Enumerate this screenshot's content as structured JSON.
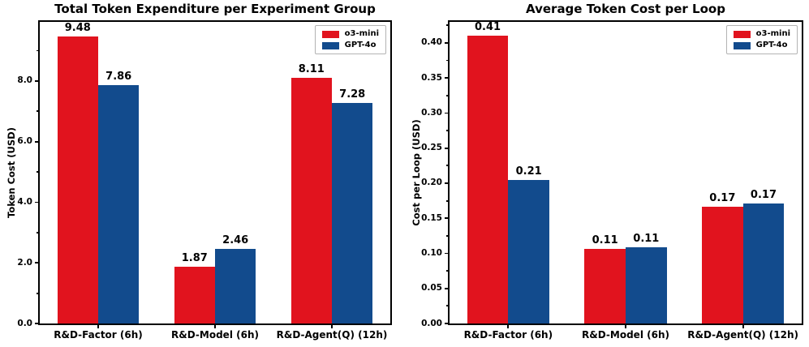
{
  "figure": {
    "background": "#ffffff",
    "text_color": "#000000"
  },
  "chart_data": [
    {
      "type": "bar",
      "title": "Total Token Expenditure per Experiment Group",
      "xlabel": "",
      "ylabel": "Token Cost (USD)",
      "categories": [
        "R&D-Factor (6h)",
        "R&D-Model (6h)",
        "R&D-Agent(Q) (12h)"
      ],
      "series": [
        {
          "name": "o3-mini",
          "color": "#E1131E",
          "values": [
            9.48,
            1.87,
            8.11
          ],
          "bar_labels": [
            "9.48",
            "1.87",
            "8.11"
          ]
        },
        {
          "name": "GPT-4o",
          "color": "#124B8D",
          "values": [
            7.86,
            2.46,
            7.28
          ],
          "bar_labels": [
            "7.86",
            "2.46",
            "7.28"
          ]
        }
      ],
      "ylim": [
        0,
        9.95
      ],
      "yticks": [
        0,
        2,
        4,
        6,
        8
      ],
      "ytick_labels": [
        "0.0",
        "2.0",
        "4.0",
        "6.0",
        "8.0"
      ],
      "legend": {
        "position": "upper right",
        "entries": [
          "o3-mini",
          "GPT-4o"
        ]
      },
      "grid": false,
      "bar_width_fraction": 0.35
    },
    {
      "type": "bar",
      "title": "Average Token Cost per Loop",
      "xlabel": "",
      "ylabel": "Cost per Loop (USD)",
      "categories": [
        "R&D-Factor (6h)",
        "R&D-Model (6h)",
        "R&D-Agent(Q) (12h)"
      ],
      "series": [
        {
          "name": "o3-mini",
          "color": "#E1131E",
          "values": [
            0.41,
            0.106,
            0.166
          ],
          "bar_labels": [
            "0.41",
            "0.11",
            "0.17"
          ]
        },
        {
          "name": "GPT-4o",
          "color": "#124B8D",
          "values": [
            0.205,
            0.109,
            0.171
          ],
          "bar_labels": [
            "0.21",
            "0.11",
            "0.17"
          ]
        }
      ],
      "ylim": [
        0,
        0.43
      ],
      "yticks": [
        0.0,
        0.05,
        0.1,
        0.15,
        0.2,
        0.25,
        0.3,
        0.35,
        0.4
      ],
      "ytick_labels": [
        "0.00",
        "0.05",
        "0.10",
        "0.15",
        "0.20",
        "0.25",
        "0.30",
        "0.35",
        "0.40"
      ],
      "legend": {
        "position": "upper right",
        "entries": [
          "o3-mini",
          "GPT-4o"
        ]
      },
      "grid": false,
      "bar_width_fraction": 0.35
    }
  ]
}
